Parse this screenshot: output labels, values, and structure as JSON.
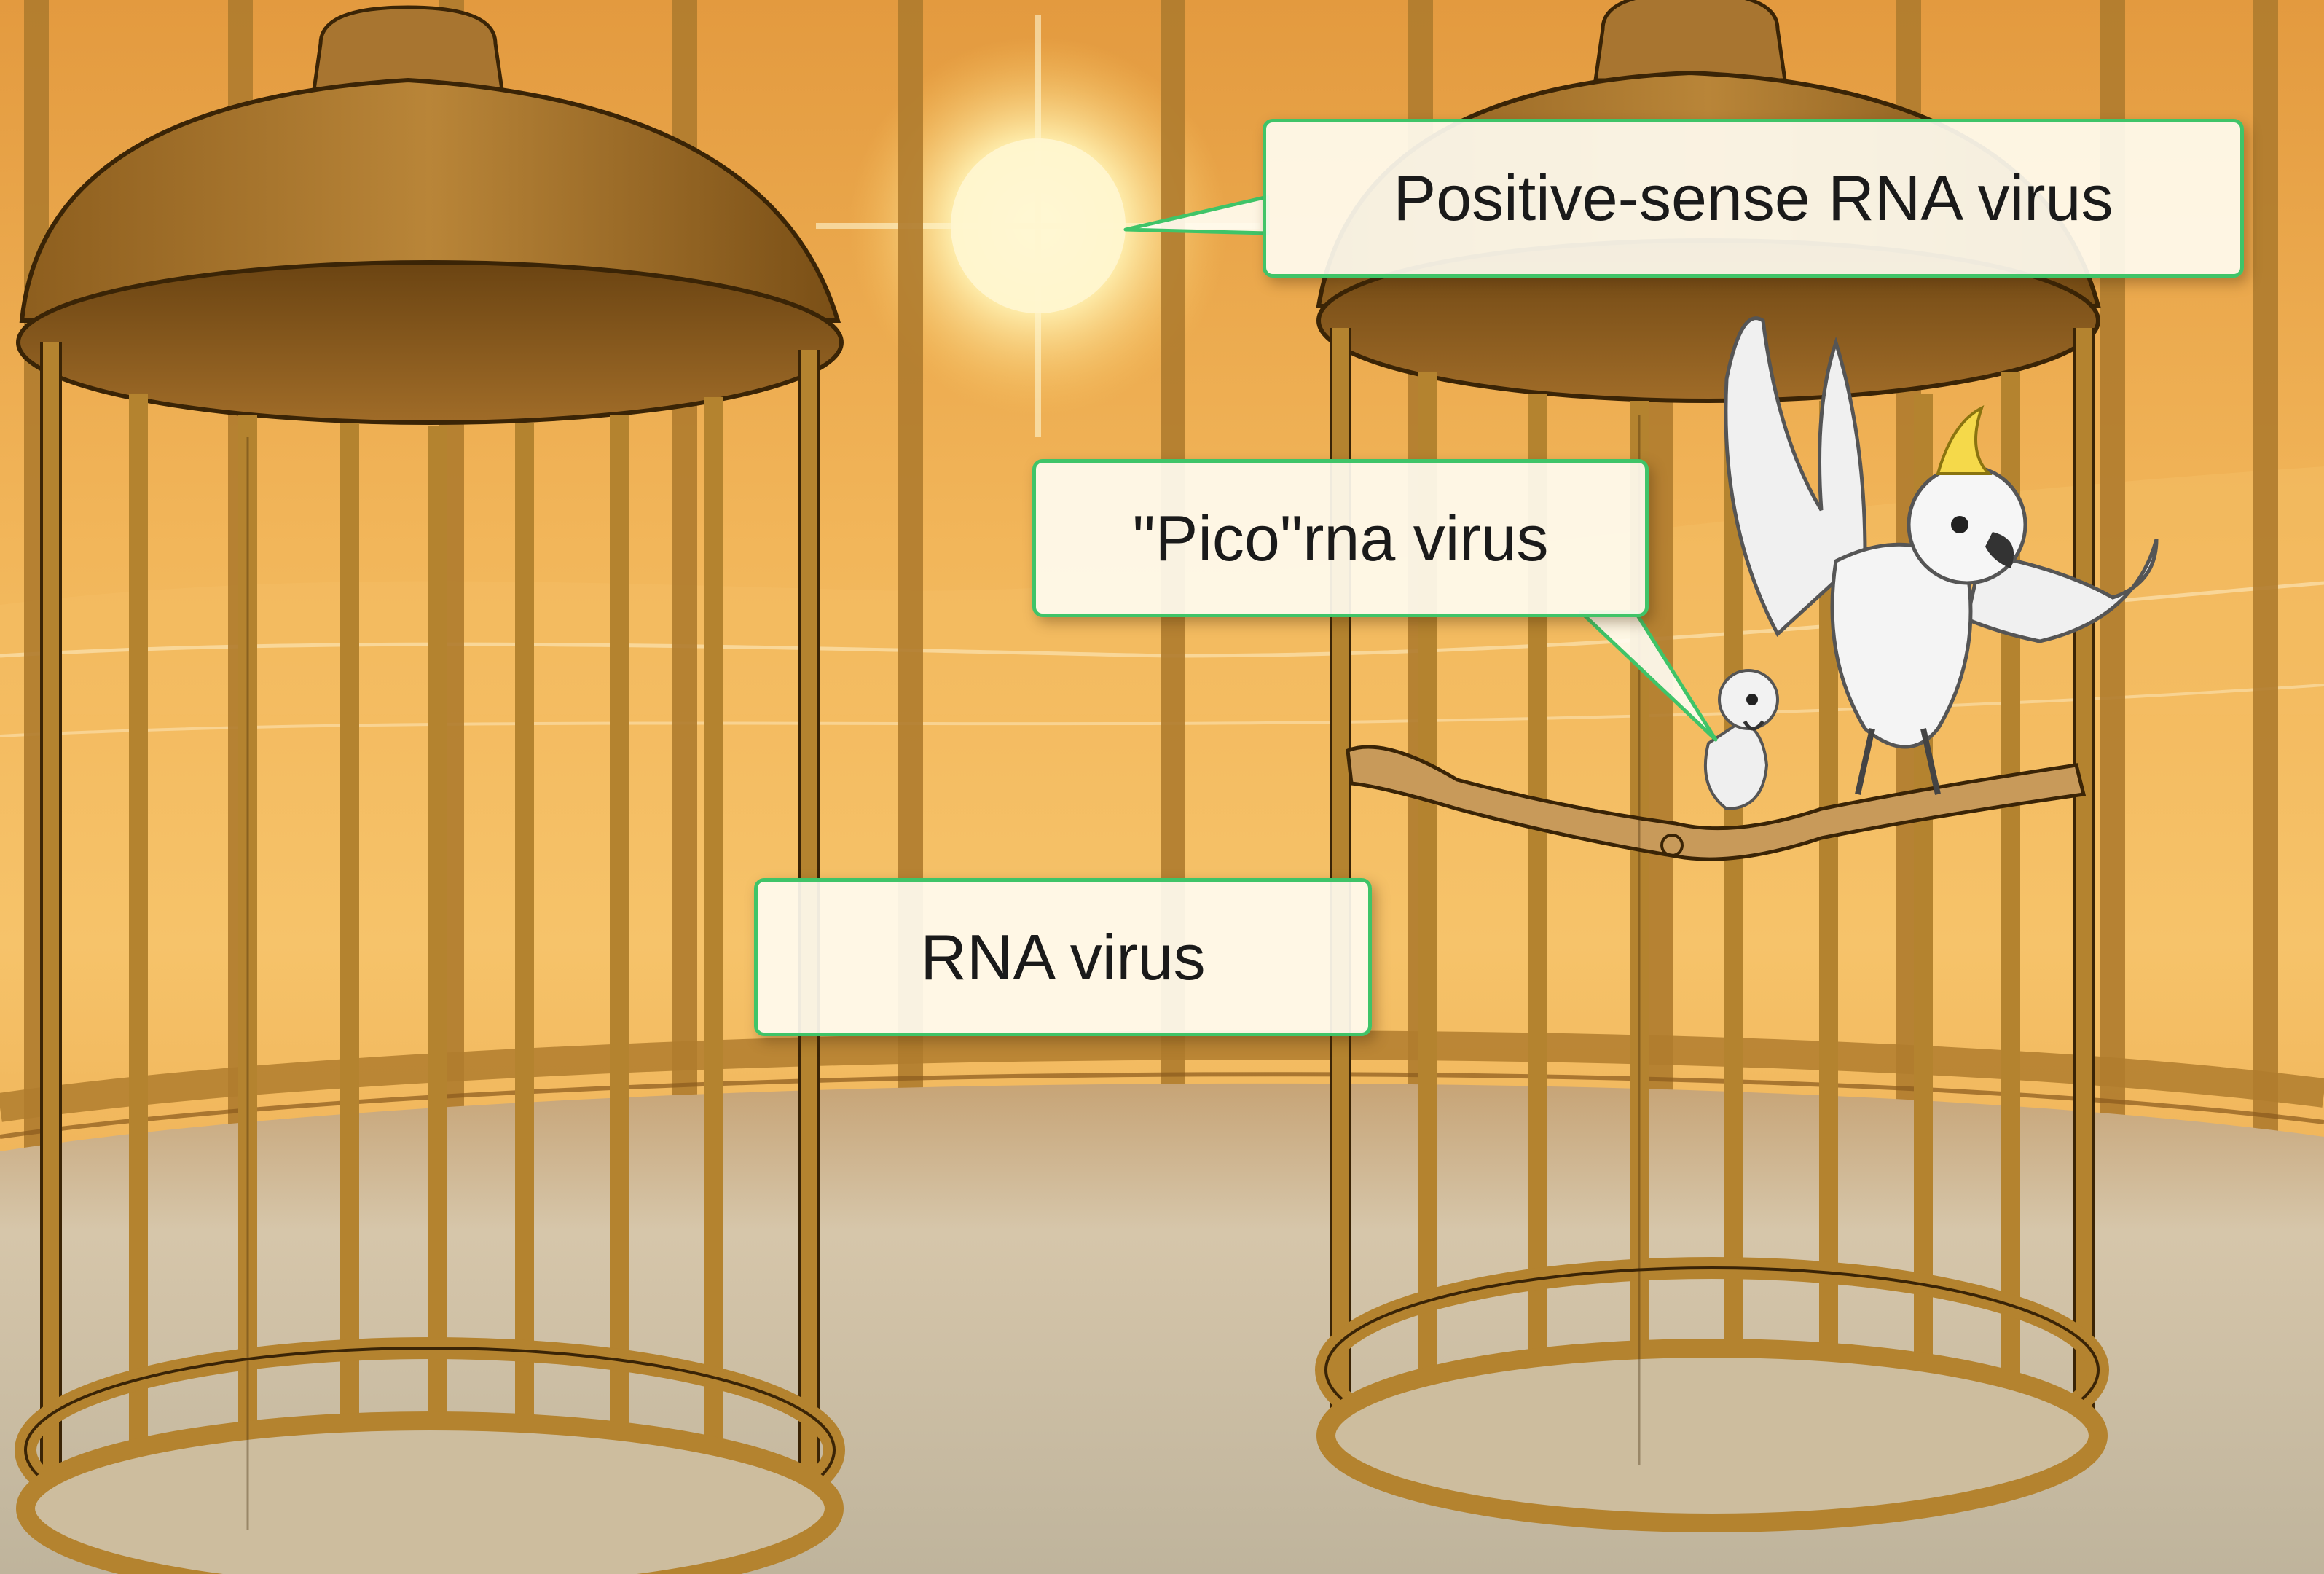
{
  "callouts": {
    "positive_sense": "Positive-sense RNA virus",
    "picorna": "\"Pico\"rna virus",
    "rna_virus": "RNA virus"
  },
  "colors": {
    "sky_top": "#f3b24e",
    "sky_mid": "#f7c86a",
    "floor": "#cfc1a6",
    "cage_bronze": "#a8742a",
    "cage_dark": "#6a4310",
    "callout_border": "#3fc468",
    "sun": "#fff3c0",
    "bird": "#eeeeee"
  },
  "icons": {
    "sun": "sun-icon",
    "cockatoo": "cockatoo-icon",
    "chick": "chick-icon",
    "perch": "branch-perch"
  }
}
